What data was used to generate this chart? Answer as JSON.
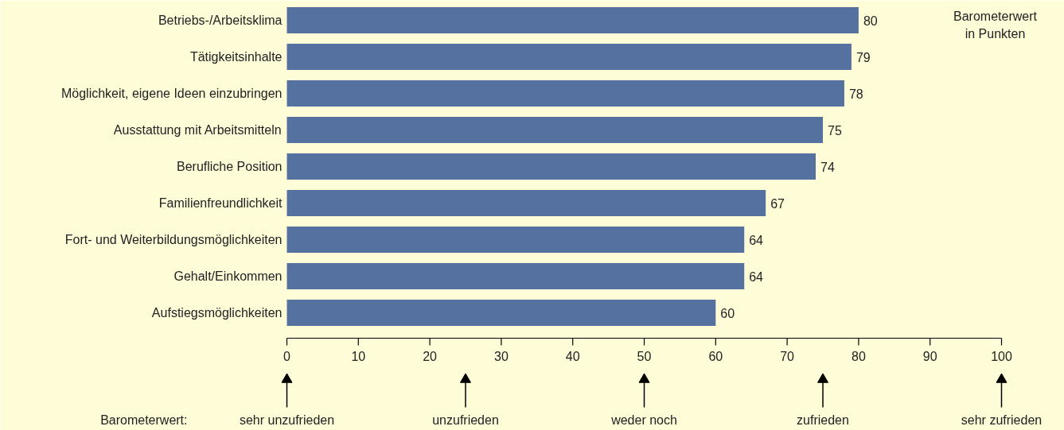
{
  "chart_data": {
    "type": "bar",
    "orientation": "horizontal",
    "categories": [
      "Betriebs-/Arbeitsklima",
      "Tätigkeitsinhalte",
      "Möglichkeit, eigene Ideen einzubringen",
      "Ausstattung mit Arbeitsmitteln",
      "Berufliche Position",
      "Familienfreundlichkeit",
      "Fort- und Weiterbildungsmöglichkeiten",
      "Gehalt/Einkommen",
      "Aufstiegsmöglichkeiten"
    ],
    "values": [
      80,
      79,
      78,
      75,
      74,
      67,
      64,
      64,
      60
    ],
    "color": "#55719f",
    "data_labels": true,
    "xlim": [
      0,
      100
    ],
    "xticks": [
      0,
      10,
      20,
      30,
      40,
      50,
      60,
      70,
      80,
      90,
      100
    ],
    "annotations": [
      "Barometerwert\nin Punkten",
      "Barometerwert:",
      "sehr unzufrieden",
      "unzufrieden",
      "weder noch",
      "zufrieden",
      "sehr zufrieden"
    ]
  }
}
